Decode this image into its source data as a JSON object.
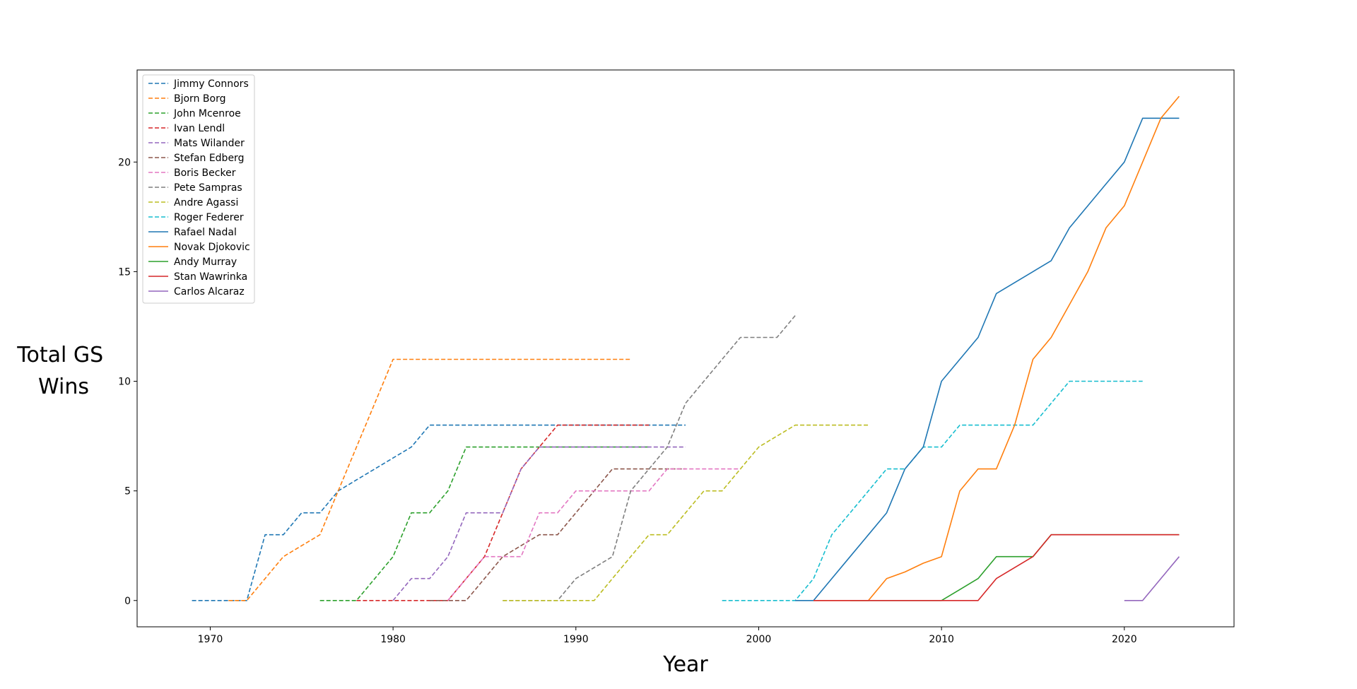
{
  "chart_data": {
    "type": "line",
    "title": "",
    "xlabel": "Year",
    "ylabel_lines": [
      "Total GS",
      "Wins"
    ],
    "xlim": [
      1966,
      2026
    ],
    "ylim": [
      -1.2,
      24.2
    ],
    "xticks": [
      1970,
      1980,
      1990,
      2000,
      2010,
      2020
    ],
    "yticks": [
      0,
      5,
      10,
      15,
      20
    ],
    "grid": false,
    "legend": "top-left",
    "series": [
      {
        "name": "Jimmy Connors",
        "color": "#1f77b4",
        "style": "dashed",
        "x": [
          1969,
          1970,
          1971,
          1972,
          1973,
          1974,
          1975,
          1976,
          1977,
          1978,
          1979,
          1980,
          1981,
          1982,
          1983,
          1984,
          1985,
          1986,
          1987,
          1988,
          1989,
          1990,
          1991,
          1992,
          1993,
          1994,
          1995,
          1996
        ],
        "y": [
          0,
          0,
          0,
          0,
          3,
          3,
          4,
          4,
          5,
          5.5,
          6,
          6.5,
          7,
          8,
          8,
          8,
          8,
          8,
          8,
          8,
          8,
          8,
          8,
          8,
          8,
          8,
          8,
          8
        ]
      },
      {
        "name": "Bjorn Borg",
        "color": "#ff7f0e",
        "style": "dashed",
        "x": [
          1971,
          1972,
          1973,
          1974,
          1975,
          1976,
          1977,
          1978,
          1979,
          1980,
          1981,
          1982,
          1983,
          1984,
          1985,
          1986,
          1987,
          1988,
          1989,
          1990,
          1991,
          1992,
          1993
        ],
        "y": [
          0,
          0,
          1,
          2,
          2.5,
          3,
          5,
          7,
          9,
          11,
          11,
          11,
          11,
          11,
          11,
          11,
          11,
          11,
          11,
          11,
          11,
          11,
          11
        ]
      },
      {
        "name": "John Mcenroe",
        "color": "#2ca02c",
        "style": "dashed",
        "x": [
          1976,
          1977,
          1978,
          1979,
          1980,
          1981,
          1982,
          1983,
          1984,
          1985,
          1986,
          1987,
          1988,
          1989,
          1990,
          1991,
          1992,
          1993,
          1994
        ],
        "y": [
          0,
          0,
          0,
          1,
          2,
          4,
          4,
          5,
          7,
          7,
          7,
          7,
          7,
          7,
          7,
          7,
          7,
          7,
          7
        ]
      },
      {
        "name": "Ivan Lendl",
        "color": "#d62728",
        "style": "dashed",
        "x": [
          1978,
          1979,
          1980,
          1981,
          1982,
          1983,
          1984,
          1985,
          1986,
          1987,
          1988,
          1989,
          1990,
          1991,
          1992,
          1993,
          1994
        ],
        "y": [
          0,
          0,
          0,
          0,
          0,
          0,
          1,
          2,
          4,
          6,
          7,
          8,
          8,
          8,
          8,
          8,
          8
        ]
      },
      {
        "name": "Mats Wilander",
        "color": "#9467bd",
        "style": "dashed",
        "x": [
          1980,
          1981,
          1982,
          1983,
          1984,
          1985,
          1986,
          1987,
          1988,
          1989,
          1990,
          1991,
          1992,
          1993,
          1994,
          1995,
          1996
        ],
        "y": [
          0,
          1,
          1,
          2,
          4,
          4,
          4,
          6,
          7,
          7,
          7,
          7,
          7,
          7,
          7,
          7,
          7
        ]
      },
      {
        "name": "Stefan Edberg",
        "color": "#8c564b",
        "style": "dashed",
        "x": [
          1982,
          1983,
          1984,
          1985,
          1986,
          1987,
          1988,
          1989,
          1990,
          1991,
          1992,
          1993,
          1994,
          1995,
          1996
        ],
        "y": [
          0,
          0,
          0,
          1,
          2,
          2.5,
          3,
          3,
          4,
          5,
          6,
          6,
          6,
          6,
          6
        ]
      },
      {
        "name": "Boris Becker",
        "color": "#e377c2",
        "style": "dashed",
        "x": [
          1983,
          1984,
          1985,
          1986,
          1987,
          1988,
          1989,
          1990,
          1991,
          1992,
          1993,
          1994,
          1995,
          1996,
          1997,
          1998,
          1999
        ],
        "y": [
          0,
          1,
          2,
          2,
          2,
          4,
          4,
          5,
          5,
          5,
          5,
          5,
          6,
          6,
          6,
          6,
          6
        ]
      },
      {
        "name": "Pete Sampras",
        "color": "#7f7f7f",
        "style": "dashed",
        "x": [
          1986,
          1987,
          1988,
          1989,
          1990,
          1991,
          1992,
          1993,
          1994,
          1995,
          1996,
          1997,
          1998,
          1999,
          2000,
          2001,
          2002
        ],
        "y": [
          0,
          0,
          0,
          0,
          1,
          1.5,
          2,
          5,
          6,
          7,
          9,
          10,
          11,
          12,
          12,
          12,
          13
        ]
      },
      {
        "name": "Andre Agassi",
        "color": "#bcbd22",
        "style": "dashed",
        "x": [
          1986,
          1987,
          1988,
          1989,
          1990,
          1991,
          1992,
          1993,
          1994,
          1995,
          1996,
          1997,
          1998,
          1999,
          2000,
          2001,
          2002,
          2003,
          2004,
          2005,
          2006
        ],
        "y": [
          0,
          0,
          0,
          0,
          0,
          0,
          1,
          2,
          3,
          3,
          4,
          5,
          5,
          6,
          7,
          7.5,
          8,
          8,
          8,
          8,
          8
        ]
      },
      {
        "name": "Roger Federer",
        "color": "#17becf",
        "style": "dashed",
        "x": [
          1998,
          1999,
          2000,
          2001,
          2002,
          2003,
          2004,
          2005,
          2006,
          2007,
          2008,
          2009,
          2010,
          2011,
          2012,
          2013,
          2014,
          2015,
          2016,
          2017,
          2018,
          2019,
          2020,
          2021
        ],
        "y": [
          0,
          0,
          0,
          0,
          0,
          1,
          3,
          4,
          5,
          6,
          6,
          7,
          7,
          8,
          8,
          8,
          8,
          8,
          9,
          10,
          10,
          10,
          10,
          10
        ]
      },
      {
        "name": "Rafael Nadal",
        "color": "#1f77b4",
        "style": "solid",
        "x": [
          2002,
          2003,
          2004,
          2005,
          2006,
          2007,
          2008,
          2009,
          2010,
          2011,
          2012,
          2013,
          2014,
          2015,
          2016,
          2017,
          2018,
          2019,
          2020,
          2021,
          2022,
          2023
        ],
        "y": [
          0,
          0,
          1,
          2,
          3,
          4,
          6,
          7,
          10,
          11,
          12,
          14,
          14.5,
          15,
          15.5,
          17,
          18,
          19,
          20,
          22,
          22,
          22
        ]
      },
      {
        "name": "Novak Djokovic",
        "color": "#ff7f0e",
        "style": "solid",
        "x": [
          2003,
          2004,
          2005,
          2006,
          2007,
          2008,
          2009,
          2010,
          2011,
          2012,
          2013,
          2014,
          2015,
          2016,
          2017,
          2018,
          2019,
          2020,
          2021,
          2022,
          2023
        ],
        "y": [
          0,
          0,
          0,
          0,
          1,
          1.3,
          1.7,
          2,
          5,
          6,
          6,
          8,
          11,
          12,
          13.5,
          15,
          17,
          18,
          20,
          22,
          23
        ]
      },
      {
        "name": "Andy Murray",
        "color": "#2ca02c",
        "style": "solid",
        "x": [
          2005,
          2006,
          2007,
          2008,
          2009,
          2010,
          2011,
          2012,
          2013,
          2014,
          2015,
          2016,
          2017,
          2018,
          2019,
          2020,
          2021,
          2022,
          2023
        ],
        "y": [
          0,
          0,
          0,
          0,
          0,
          0,
          0.5,
          1,
          2,
          2,
          2,
          3,
          3,
          3,
          3,
          3,
          3,
          3,
          3
        ]
      },
      {
        "name": "Stan Wawrinka",
        "color": "#d62728",
        "style": "solid",
        "x": [
          2003,
          2004,
          2005,
          2006,
          2007,
          2008,
          2009,
          2010,
          2011,
          2012,
          2013,
          2014,
          2015,
          2016,
          2017,
          2018,
          2019,
          2020,
          2021,
          2022,
          2023
        ],
        "y": [
          0,
          0,
          0,
          0,
          0,
          0,
          0,
          0,
          0,
          0,
          1,
          1.5,
          2,
          3,
          3,
          3,
          3,
          3,
          3,
          3,
          3
        ]
      },
      {
        "name": "Carlos Alcaraz",
        "color": "#9467bd",
        "style": "solid",
        "x": [
          2020,
          2021,
          2022,
          2023
        ],
        "y": [
          0,
          0,
          1,
          2
        ]
      }
    ]
  }
}
